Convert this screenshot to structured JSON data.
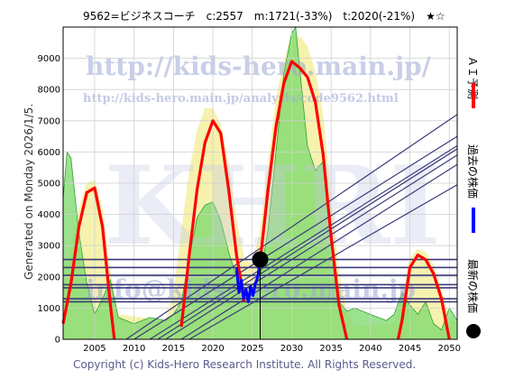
{
  "title": "9562=ビジネスコーチ　c:2557　m:1721(-33%)　t:2020(-21%)　★☆",
  "generated_label": "Generated on Monday 2026/1/5.",
  "copyright": "Copyright (c) Kids-Hero Research Institute. All Rights Reserved.",
  "watermark": {
    "url_main": "http://kids-hero.main.jp/",
    "url_analysis": "http://kids-hero.main.jp/analysis/code9562.html",
    "big_text": "KHRI",
    "url_lower": "info@kids-hero.main.jp"
  },
  "legend": [
    {
      "label": "ＡＩ予測",
      "color": "#ff0000"
    },
    {
      "label": "過去の株価",
      "color": "#0000ff"
    },
    {
      "label": "最新の株価",
      "color": "#000000"
    }
  ],
  "chart_data": {
    "type": "line",
    "title": "9562=ビジネスコーチ　c:2557　m:1721(-33%)　t:2020(-21%)　★☆",
    "xlabel": "",
    "ylabel": "",
    "xlim": [
      2001,
      2051
    ],
    "ylim": [
      0,
      10000
    ],
    "x_ticks": [
      2005,
      2010,
      2015,
      2020,
      2025,
      2030,
      2035,
      2040,
      2045,
      2050
    ],
    "y_ticks": [
      0,
      1000,
      2000,
      3000,
      4000,
      5000,
      6000,
      7000,
      8000,
      9000
    ],
    "grid": true,
    "latest": {
      "x": 2026,
      "y": 2557
    },
    "current_marker_x": 2026,
    "horizontal_levels": [
      2557,
      2300,
      2050,
      1750,
      1650,
      1300,
      1200
    ],
    "trend_lines": [
      {
        "from": [
          2009,
          0
        ],
        "to": [
          2051,
          7200
        ]
      },
      {
        "from": [
          2010,
          0
        ],
        "to": [
          2051,
          6500
        ]
      },
      {
        "from": [
          2012,
          0
        ],
        "to": [
          2051,
          6200
        ]
      },
      {
        "from": [
          2013,
          0
        ],
        "to": [
          2051,
          6100
        ]
      },
      {
        "from": [
          2014,
          0
        ],
        "to": [
          2051,
          5900
        ]
      },
      {
        "from": [
          2016,
          0
        ],
        "to": [
          2051,
          5600
        ]
      },
      {
        "from": [
          2017,
          0
        ],
        "to": [
          2051,
          4950
        ]
      }
    ],
    "series": [
      {
        "name": "ＡＩ予測",
        "color": "#ff0000",
        "segments": [
          {
            "x": [
              2001,
              2002,
              2003,
              2004,
              2005,
              2006,
              2007,
              2007.5
            ],
            "y": [
              500,
              1800,
              3600,
              4700,
              4850,
              3600,
              1100,
              0
            ]
          },
          {
            "x": [
              2016,
              2017,
              2018,
              2019,
              2020,
              2021,
              2022,
              2023,
              2024
            ],
            "y": [
              400,
              2700,
              4800,
              6300,
              7000,
              6600,
              4800,
              2700,
              1200
            ]
          },
          {
            "x": [
              2026,
              2027,
              2028,
              2029,
              2030,
              2031,
              2032,
              2033,
              2034,
              2035,
              2036,
              2037
            ],
            "y": [
              2500,
              4800,
              6800,
              8200,
              8900,
              8700,
              8400,
              7600,
              5900,
              3300,
              1100,
              0
            ]
          },
          {
            "x": [
              2043.5,
              2044,
              2045,
              2046,
              2047,
              2048,
              2049,
              2050
            ],
            "y": [
              0,
              600,
              2300,
              2700,
              2550,
              2100,
              1300,
              0
            ]
          }
        ]
      },
      {
        "name": "過去の株価",
        "color": "#0000ff",
        "x": [
          2023.0,
          2023.3,
          2023.6,
          2023.9,
          2024.2,
          2024.5,
          2024.8,
          2025.1,
          2025.4,
          2025.7,
          2026.0
        ],
        "y": [
          2300,
          1500,
          1900,
          1300,
          1600,
          1200,
          1700,
          1400,
          1800,
          2000,
          2557
        ]
      }
    ],
    "areas": [
      {
        "name": "yellow-band",
        "color": "#f5f0a0",
        "x": [
          2001,
          2002,
          2003,
          2004,
          2005,
          2006,
          2007,
          2008,
          2014,
          2015,
          2016,
          2017,
          2018,
          2019,
          2020,
          2021,
          2022,
          2023,
          2024,
          2025,
          2026,
          2027,
          2028,
          2029,
          2030,
          2031,
          2032,
          2033,
          2034,
          2035,
          2036,
          2037,
          2038,
          2043,
          2044,
          2045,
          2046,
          2047,
          2048,
          2049,
          2050,
          2051
        ],
        "y": [
          2200,
          3000,
          4200,
          5000,
          5100,
          4200,
          2200,
          800,
          600,
          1500,
          3500,
          5400,
          6700,
          7400,
          7400,
          6900,
          5600,
          3800,
          2600,
          2400,
          3500,
          5600,
          7700,
          8900,
          9800,
          9700,
          9400,
          8600,
          7200,
          4500,
          2200,
          900,
          400,
          500,
          1400,
          2600,
          2900,
          2800,
          2400,
          1600,
          700,
          500
        ]
      },
      {
        "name": "green-band",
        "color": "#7ad86a",
        "x": [
          2001,
          2001.5,
          2002,
          2003,
          2004,
          2005,
          2006,
          2007,
          2008,
          2010,
          2012,
          2014,
          2015,
          2016,
          2017,
          2018,
          2019,
          2020,
          2021,
          2022,
          2023,
          2024,
          2025,
          2026,
          2027,
          2028,
          2029,
          2030,
          2030.5,
          2031,
          2032,
          2033,
          2034,
          2035,
          2036,
          2037,
          2038,
          2040,
          2042,
          2043,
          2044,
          2045,
          2046,
          2047,
          2048,
          2049,
          2050,
          2051
        ],
        "y": [
          4500,
          6000,
          5800,
          3400,
          1800,
          800,
          1300,
          1900,
          700,
          500,
          700,
          600,
          800,
          1200,
          2600,
          3900,
          4300,
          4400,
          3800,
          2800,
          2000,
          1300,
          1500,
          2000,
          3500,
          6000,
          8500,
          9800,
          10000,
          8700,
          6200,
          5400,
          5700,
          3200,
          1200,
          900,
          1000,
          800,
          600,
          800,
          1500,
          1100,
          800,
          1200,
          500,
          300,
          1000,
          600
        ]
      }
    ]
  }
}
